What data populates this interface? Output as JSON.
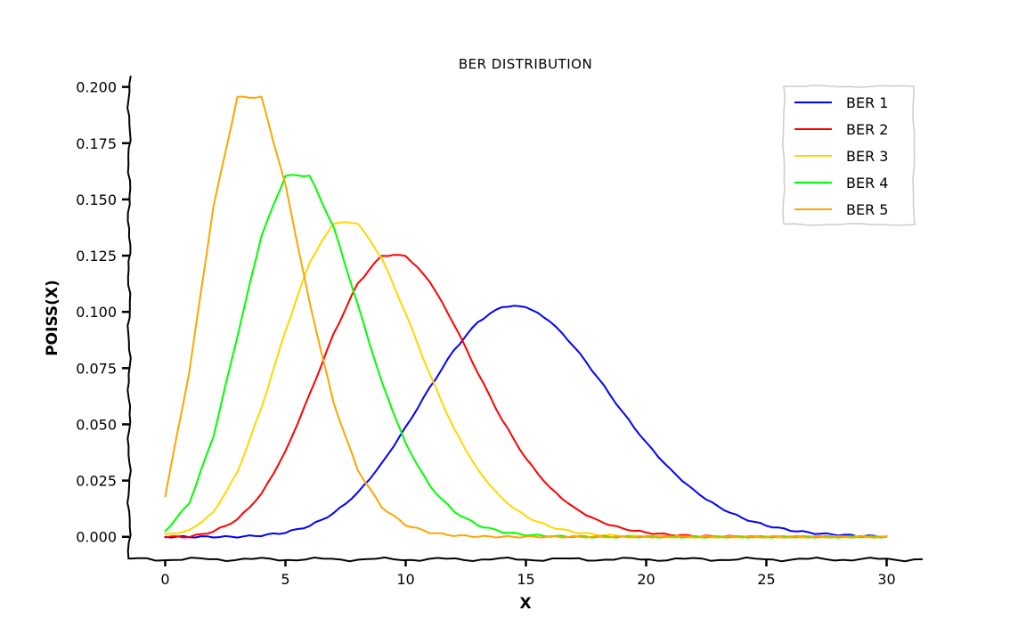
{
  "chart_data": {
    "type": "line",
    "title": "BER DISTRIBUTION",
    "xlabel": "X",
    "ylabel": "POISS(X)",
    "xlim": [
      -1.5,
      31.5
    ],
    "ylim": [
      -0.01,
      0.205
    ],
    "xticks": [
      0,
      5,
      10,
      15,
      20,
      25,
      30
    ],
    "xtick_labels": [
      "0",
      "5",
      "10",
      "15",
      "20",
      "25",
      "30"
    ],
    "yticks": [
      0.0,
      0.025,
      0.05,
      0.075,
      0.1,
      0.125,
      0.15,
      0.175,
      0.2
    ],
    "ytick_labels": [
      "0.000",
      "0.025",
      "0.050",
      "0.075",
      "0.100",
      "0.125",
      "0.150",
      "0.175",
      "0.200"
    ],
    "grid": false,
    "legend_position": "top-right",
    "style": "xkcd",
    "x": [
      0,
      1,
      2,
      3,
      4,
      5,
      6,
      7,
      8,
      9,
      10,
      11,
      12,
      13,
      14,
      15,
      16,
      17,
      18,
      19,
      20,
      21,
      22,
      23,
      24,
      25,
      26,
      27,
      28,
      29,
      30
    ],
    "series": [
      {
        "name": "BER 1",
        "color": "#0000ff",
        "values": [
          0.0,
          0.0,
          0.0,
          0.0,
          0.0006,
          0.0019,
          0.0048,
          0.0104,
          0.0194,
          0.0324,
          0.0486,
          0.0663,
          0.0829,
          0.0956,
          0.1024,
          0.1024,
          0.096,
          0.0847,
          0.0706,
          0.0557,
          0.0418,
          0.0299,
          0.0204,
          0.0133,
          0.0083,
          0.005,
          0.0029,
          0.0016,
          0.0009,
          0.0004,
          0.0002
        ]
      },
      {
        "name": "BER 2",
        "color": "#ff0000",
        "values": [
          0.0,
          0.0,
          0.0023,
          0.0076,
          0.0189,
          0.0378,
          0.0631,
          0.0901,
          0.1126,
          0.1251,
          0.1251,
          0.1137,
          0.0948,
          0.0729,
          0.0521,
          0.0347,
          0.0217,
          0.0128,
          0.0071,
          0.0037,
          0.0019,
          0.0009,
          0.0004,
          0.0002,
          0.0001,
          0.0,
          0.0,
          0.0,
          0.0,
          0.0,
          0.0
        ]
      },
      {
        "name": "BER 3",
        "color": "#ffd700",
        "values": [
          0.0009,
          0.0027,
          0.0107,
          0.0286,
          0.0573,
          0.0916,
          0.1221,
          0.1396,
          0.1396,
          0.1241,
          0.0993,
          0.0722,
          0.0481,
          0.0296,
          0.0169,
          0.009,
          0.0045,
          0.0021,
          0.0009,
          0.0004,
          0.0002,
          0.0,
          0.0,
          0.0,
          0.0,
          0.0,
          0.0,
          0.0,
          0.0,
          0.0,
          0.0
        ]
      },
      {
        "name": "BER 4",
        "color": "#00ff00",
        "values": [
          0.0025,
          0.015,
          0.0446,
          0.0892,
          0.1339,
          0.1606,
          0.1606,
          0.1377,
          0.1033,
          0.0688,
          0.0413,
          0.0225,
          0.0113,
          0.0052,
          0.0022,
          0.0009,
          0.0003,
          0.0001,
          0.0,
          0.0,
          0.0,
          0.0,
          0.0,
          0.0,
          0.0,
          0.0,
          0.0,
          0.0,
          0.0,
          0.0,
          0.0
        ]
      },
      {
        "name": "BER 5",
        "color": "#ffa500",
        "values": [
          0.0183,
          0.0733,
          0.1465,
          0.1954,
          0.1954,
          0.1563,
          0.1042,
          0.0595,
          0.0298,
          0.0132,
          0.0053,
          0.0019,
          0.0006,
          0.0002,
          0.0,
          0.0,
          0.0,
          0.0,
          0.0,
          0.0,
          0.0,
          0.0,
          0.0,
          0.0,
          0.0,
          0.0,
          0.0,
          0.0,
          0.0,
          0.0,
          0.0
        ]
      }
    ]
  }
}
